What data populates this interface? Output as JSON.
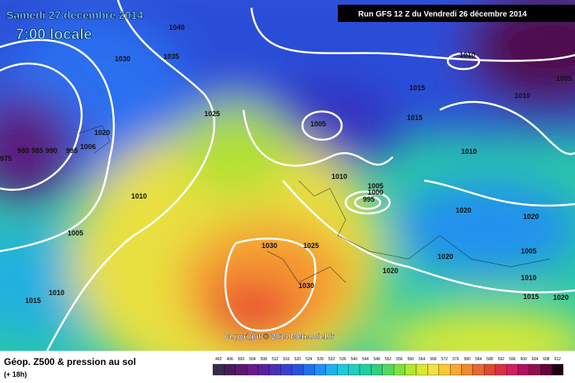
{
  "header": {
    "title": "Samedi 27 decembre 2014",
    "time": "7:00 locale",
    "run": "Run GFS 12 Z du Vendredi 26 décembre 2014"
  },
  "isobar_labels": [
    1040,
    1030,
    1035,
    1025,
    1020,
    995,
    1006,
    980,
    985,
    990,
    975,
    1010,
    1005,
    1010,
    1015,
    1005,
    1010,
    1005,
    1000,
    995,
    1030,
    1025,
    1030,
    1020,
    1015,
    1015,
    1010,
    1010,
    1005,
    1010,
    1020,
    1020,
    1020,
    1005,
    1010,
    1015,
    1020
  ],
  "copyright": "Copyright © 2014 Meteociel.fr",
  "footer": {
    "title": "Géop. Z500 & pression au sol",
    "lead": "(+ 18h)"
  },
  "legend": {
    "values": [
      492,
      496,
      500,
      504,
      508,
      512,
      516,
      520,
      524,
      528,
      532,
      536,
      540,
      544,
      548,
      552,
      556,
      560,
      564,
      568,
      572,
      576,
      580,
      584,
      588,
      592,
      596,
      600,
      604,
      608,
      612
    ],
    "colors": [
      "#3a2a4a",
      "#4a1a5a",
      "#5a1a70",
      "#6a1a8a",
      "#5a20a0",
      "#4a30b8",
      "#3a40d0",
      "#2a50e0",
      "#2070f0",
      "#2090f8",
      "#20b0f0",
      "#20c8e0",
      "#20d0c0",
      "#20d0a0",
      "#30d080",
      "#50d860",
      "#80e040",
      "#b0e830",
      "#d8e830",
      "#f0e040",
      "#f8c830",
      "#f8a830",
      "#f08830",
      "#e86830",
      "#e04830",
      "#d83040",
      "#d02060",
      "#b01060",
      "#901050",
      "#600838",
      "#200010"
    ]
  }
}
